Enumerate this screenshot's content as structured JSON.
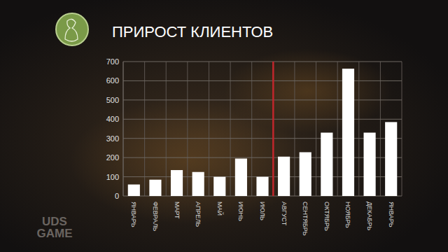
{
  "chart_data": {
    "type": "bar",
    "title": "ПРИРОСТ КЛИЕНТОВ",
    "categories": [
      "ЯНВАРЬ",
      "ФЕВРАЛЬ",
      "МАРТ",
      "АПРЕЛЬ",
      "МАЙ",
      "ИЮНЬ",
      "ИЮЛЬ",
      "АВГУСТ",
      "СЕНТЯБРЬ",
      "ОКТЯБРЬ",
      "НОЯБРЬ",
      "ДЕКАБРЬ",
      "ЯНВАРЬ"
    ],
    "values": [
      60,
      85,
      135,
      125,
      100,
      195,
      100,
      205,
      228,
      330,
      663,
      330,
      385
    ],
    "color": "#ffffff",
    "ylim": [
      0,
      700
    ],
    "yticks": [
      0,
      100,
      200,
      300,
      400,
      500,
      600,
      700
    ],
    "grid": true,
    "annotations": [
      "UDS GAME"
    ]
  }
}
